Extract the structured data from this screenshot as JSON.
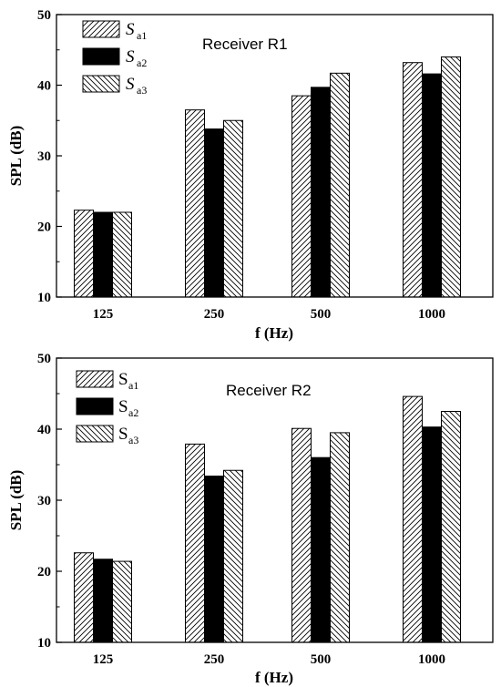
{
  "chart_data": [
    {
      "type": "bar",
      "categories": [
        "125",
        "250",
        "500",
        "1000"
      ],
      "series": [
        {
          "name": "S",
          "subscript": "a1",
          "values": [
            22.3,
            36.5,
            38.5,
            43.2
          ],
          "fill": "hatch-right",
          "italic": true
        },
        {
          "name": "S",
          "subscript": "a2",
          "values": [
            22.0,
            33.8,
            39.7,
            41.6
          ],
          "fill": "solid",
          "italic": true
        },
        {
          "name": "S",
          "subscript": "a3",
          "values": [
            22.0,
            35.0,
            41.7,
            44.0
          ],
          "fill": "hatch-left",
          "italic": true
        }
      ],
      "annotation": "Receiver R1",
      "xlabel": "f (Hz)",
      "ylabel": "SPL (dB)",
      "ylim": [
        10,
        50
      ],
      "yticks": [
        "10",
        "20",
        "30",
        "40",
        "50"
      ],
      "legend": "top-left",
      "grid": false
    },
    {
      "type": "bar",
      "categories": [
        "125",
        "250",
        "500",
        "1000"
      ],
      "series": [
        {
          "name": "S",
          "subscript": "a1",
          "values": [
            22.6,
            37.9,
            40.1,
            44.6
          ],
          "fill": "hatch-right",
          "italic": false
        },
        {
          "name": "S",
          "subscript": "a2",
          "values": [
            21.7,
            33.4,
            36.0,
            40.3
          ],
          "fill": "solid",
          "italic": false
        },
        {
          "name": "S",
          "subscript": "a3",
          "values": [
            21.4,
            34.2,
            39.5,
            42.5
          ],
          "fill": "hatch-left",
          "italic": false
        }
      ],
      "annotation": "Receiver R2",
      "xlabel": "f (Hz)",
      "ylabel": "SPL (dB)",
      "ylim": [
        10,
        50
      ],
      "yticks": [
        "10",
        "20",
        "30",
        "40",
        "50"
      ],
      "legend": "top-left",
      "grid": false
    }
  ],
  "colors": {
    "bar_solid": "#000000",
    "hatch": "#000000",
    "bar_background": "#ffffff",
    "axis": "#000000"
  }
}
